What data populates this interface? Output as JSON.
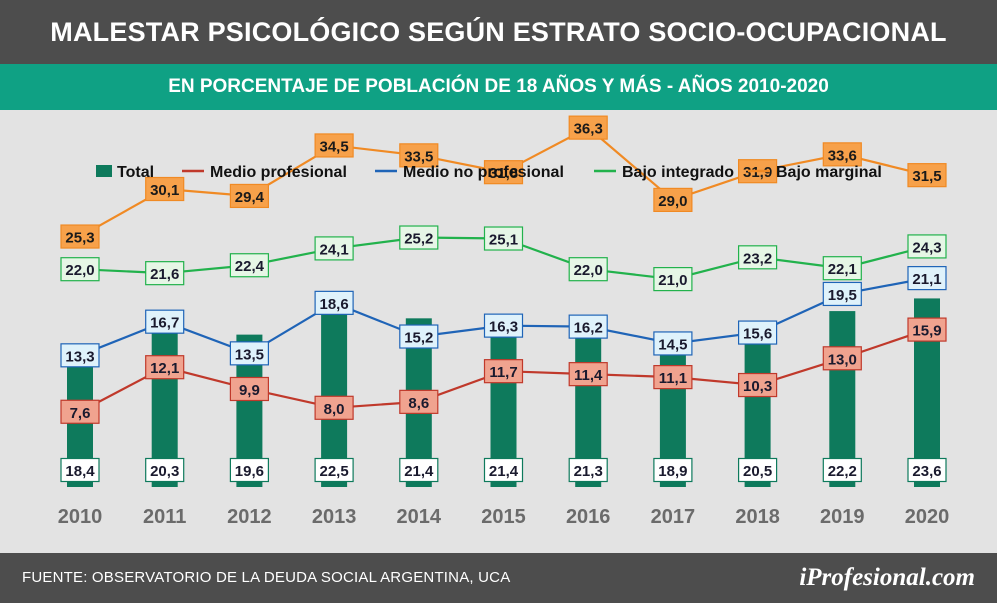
{
  "header": {
    "title": "MALESTAR PSICOLÓGICO SEGÚN ESTRATO SOCIO-OCUPACIONAL",
    "subtitle": "EN PORCENTAJE DE POBLACIÓN DE 18 AÑOS Y MÁS - AÑOS 2010-2020"
  },
  "footer": {
    "source": "FUENTE: OBSERVATORIO DE LA DEUDA SOCIAL ARGENTINA, UCA",
    "brand": "iProfesional.com"
  },
  "chart_data": {
    "type": "bar",
    "categories": [
      "2010",
      "2011",
      "2012",
      "2013",
      "2014",
      "2015",
      "2016",
      "2017",
      "2018",
      "2019",
      "2020"
    ],
    "legend_position": "top",
    "grid": false,
    "series": [
      {
        "name": "Total",
        "type": "bar",
        "color": "#0e7a5c",
        "values": [
          18.4,
          20.3,
          19.6,
          22.5,
          21.4,
          21.4,
          21.3,
          18.9,
          20.5,
          22.2,
          23.6
        ],
        "labels": [
          "18,4",
          "20,3",
          "19,6",
          "22,5",
          "21,4",
          "21,4",
          "21,3",
          "18,9",
          "20,5",
          "22,2",
          "23,6"
        ]
      },
      {
        "name": "Medio profesional",
        "type": "line",
        "color": "#c0392b",
        "label_bg": "#f0a38f",
        "values": [
          7.6,
          12.1,
          9.9,
          8.0,
          8.6,
          11.7,
          11.4,
          11.1,
          10.3,
          13.0,
          15.9
        ],
        "labels": [
          "7,6",
          "12,1",
          "9,9",
          "8,0",
          "8,6",
          "11,7",
          "11,4",
          "11,1",
          "10,3",
          "13,0",
          "15,9"
        ]
      },
      {
        "name": "Medio no profesional",
        "type": "line",
        "color": "#1f64b7",
        "label_bg": "#dff2fb",
        "values": [
          13.3,
          16.7,
          13.5,
          18.6,
          15.2,
          16.3,
          16.2,
          14.5,
          15.6,
          19.5,
          21.1
        ],
        "labels": [
          "13,3",
          "16,7",
          "13,5",
          "18,6",
          "15,2",
          "16,3",
          "16,2",
          "14,5",
          "15,6",
          "19,5",
          "21,1"
        ]
      },
      {
        "name": "Bajo integrado",
        "type": "line",
        "color": "#22b24c",
        "label_bg": "#e6f6e6",
        "values": [
          22.0,
          21.6,
          22.4,
          24.1,
          25.2,
          25.1,
          22.0,
          21.0,
          23.2,
          22.1,
          24.3
        ],
        "labels": [
          "22,0",
          "21,6",
          "22,4",
          "24,1",
          "25,2",
          "25,1",
          "22,0",
          "21,0",
          "23,2",
          "22,1",
          "24,3"
        ]
      },
      {
        "name": "Bajo marginal",
        "type": "line",
        "color": "#f08a24",
        "label_bg": "#f7a14a",
        "values": [
          25.3,
          30.1,
          29.4,
          34.5,
          33.5,
          31.8,
          36.3,
          29.0,
          31.9,
          33.6,
          31.5
        ],
        "labels": [
          "25,3",
          "30,1",
          "29,4",
          "34,5",
          "33,5",
          "31,8",
          "36,3",
          "29,0",
          "31,9",
          "33,6",
          "31,5"
        ]
      }
    ]
  }
}
